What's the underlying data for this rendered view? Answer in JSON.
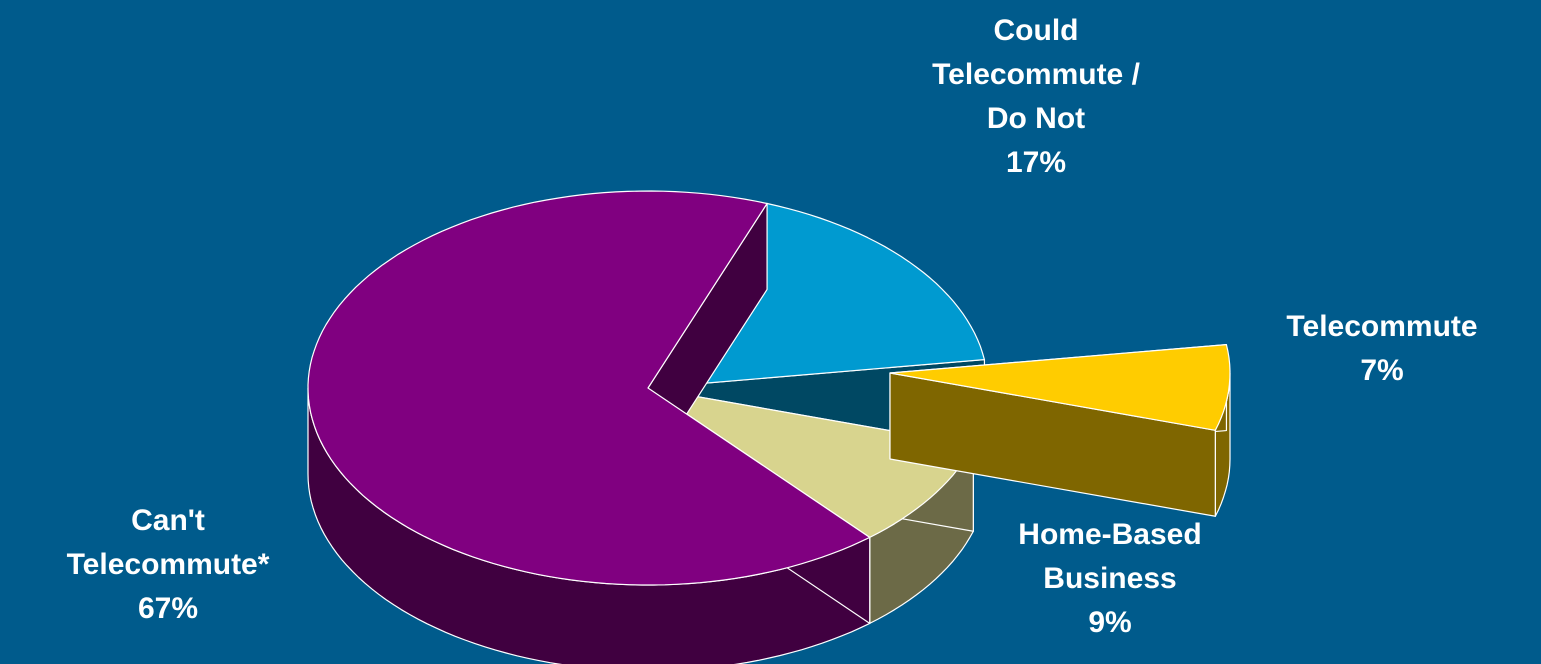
{
  "chart_data": {
    "type": "pie",
    "title": "",
    "legend": "none",
    "slices": [
      {
        "name": "Could Telecommute / Do Not",
        "label_lines": [
          "Could",
          "Telecommute /",
          "Do Not"
        ],
        "value": 17,
        "value_label": "17%",
        "color": "#009ad0",
        "side_color": "#004863",
        "exploded": false
      },
      {
        "name": "Telecommute",
        "label_lines": [
          "Telecommute"
        ],
        "value": 7,
        "value_label": "7%",
        "color": "#ffcc00",
        "side_color": "#7f6600",
        "exploded": true
      },
      {
        "name": "Home-Based Business",
        "label_lines": [
          "Home-Based",
          "Business"
        ],
        "value": 9,
        "value_label": "9%",
        "color": "#d8d48e",
        "side_color": "#6c6a47",
        "exploded": false
      },
      {
        "name": "Can't Telecommute*",
        "label_lines": [
          "Can't",
          "Telecommute*"
        ],
        "value": 67,
        "value_label": "67%",
        "color": "#800080",
        "side_color": "#400040",
        "exploded": false
      }
    ]
  }
}
